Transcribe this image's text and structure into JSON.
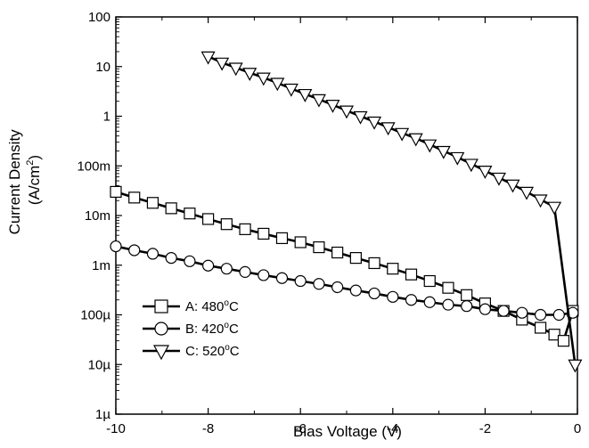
{
  "chart_data": {
    "type": "line",
    "xlabel": "Bias Voltage (V)",
    "ylabel_line1": "Current Density",
    "ylabel_line2_prefix": "(A/cm",
    "ylabel_line2_sup": "2",
    "ylabel_line2_suffix": ")",
    "x_scale": "linear",
    "y_scale": "log",
    "xlim": [
      -10,
      0
    ],
    "ylim": [
      1e-06,
      100
    ],
    "x_ticks": [
      {
        "value": -10,
        "label": "-10"
      },
      {
        "value": -8,
        "label": "-8"
      },
      {
        "value": -6,
        "label": "-6"
      },
      {
        "value": -4,
        "label": "-4"
      },
      {
        "value": -2,
        "label": "-2"
      },
      {
        "value": 0,
        "label": "0"
      }
    ],
    "y_ticks": [
      {
        "value": 1e-06,
        "label": "1µ"
      },
      {
        "value": 1e-05,
        "label": "10µ"
      },
      {
        "value": 0.0001,
        "label": "100µ"
      },
      {
        "value": 0.001,
        "label": "1m"
      },
      {
        "value": 0.01,
        "label": "10m"
      },
      {
        "value": 0.1,
        "label": "100m"
      },
      {
        "value": 1,
        "label": "1"
      },
      {
        "value": 10,
        "label": "10"
      },
      {
        "value": 100,
        "label": "100"
      }
    ],
    "grid": false,
    "legend_position": "bottom-left",
    "series": [
      {
        "name_prefix": "A: 480",
        "name_sup": "o",
        "name_suffix": "C",
        "marker": "square",
        "color": "#000000",
        "x": [
          -10,
          -9.6,
          -9.2,
          -8.8,
          -8.4,
          -8.0,
          -7.6,
          -7.2,
          -6.8,
          -6.4,
          -6.0,
          -5.6,
          -5.2,
          -4.8,
          -4.4,
          -4.0,
          -3.6,
          -3.2,
          -2.8,
          -2.4,
          -2.0,
          -1.6,
          -1.2,
          -0.8,
          -0.5,
          -0.3,
          -0.1
        ],
        "y": [
          0.03,
          0.023,
          0.018,
          0.014,
          0.011,
          0.0085,
          0.0067,
          0.0053,
          0.0043,
          0.0035,
          0.0029,
          0.0023,
          0.0018,
          0.0014,
          0.0011,
          0.00085,
          0.00065,
          0.00048,
          0.00035,
          0.00025,
          0.00017,
          0.00012,
          8e-05,
          5.5e-05,
          4e-05,
          3e-05,
          0.00012
        ]
      },
      {
        "name_prefix": "B: 420",
        "name_sup": "o",
        "name_suffix": "C",
        "marker": "circle",
        "color": "#000000",
        "x": [
          -10,
          -9.6,
          -9.2,
          -8.8,
          -8.4,
          -8.0,
          -7.6,
          -7.2,
          -6.8,
          -6.4,
          -6.0,
          -5.6,
          -5.2,
          -4.8,
          -4.4,
          -4.0,
          -3.6,
          -3.2,
          -2.8,
          -2.4,
          -2.0,
          -1.6,
          -1.2,
          -0.8,
          -0.4,
          -0.1
        ],
        "y": [
          0.0024,
          0.002,
          0.0017,
          0.0014,
          0.0012,
          0.00098,
          0.00085,
          0.00073,
          0.00063,
          0.00055,
          0.00048,
          0.00042,
          0.00036,
          0.00031,
          0.00027,
          0.00023,
          0.0002,
          0.00018,
          0.00016,
          0.00015,
          0.00013,
          0.00012,
          0.00011,
          0.0001,
          0.0001,
          0.00011
        ]
      },
      {
        "name_prefix": "C: 520",
        "name_sup": "o",
        "name_suffix": "C",
        "marker": "triangle-down",
        "color": "#000000",
        "x": [
          -8.0,
          -7.7,
          -7.4,
          -7.1,
          -6.8,
          -6.5,
          -6.2,
          -5.9,
          -5.6,
          -5.3,
          -5.0,
          -4.7,
          -4.4,
          -4.1,
          -3.8,
          -3.5,
          -3.2,
          -2.9,
          -2.6,
          -2.3,
          -2.0,
          -1.7,
          -1.4,
          -1.1,
          -0.8,
          -0.5,
          -0.05
        ],
        "y": [
          16,
          12,
          9.5,
          7.5,
          6.0,
          4.7,
          3.6,
          2.8,
          2.2,
          1.7,
          1.3,
          1.0,
          0.78,
          0.6,
          0.46,
          0.36,
          0.27,
          0.2,
          0.15,
          0.11,
          0.08,
          0.058,
          0.042,
          0.03,
          0.021,
          0.015,
          1e-05
        ]
      }
    ]
  }
}
